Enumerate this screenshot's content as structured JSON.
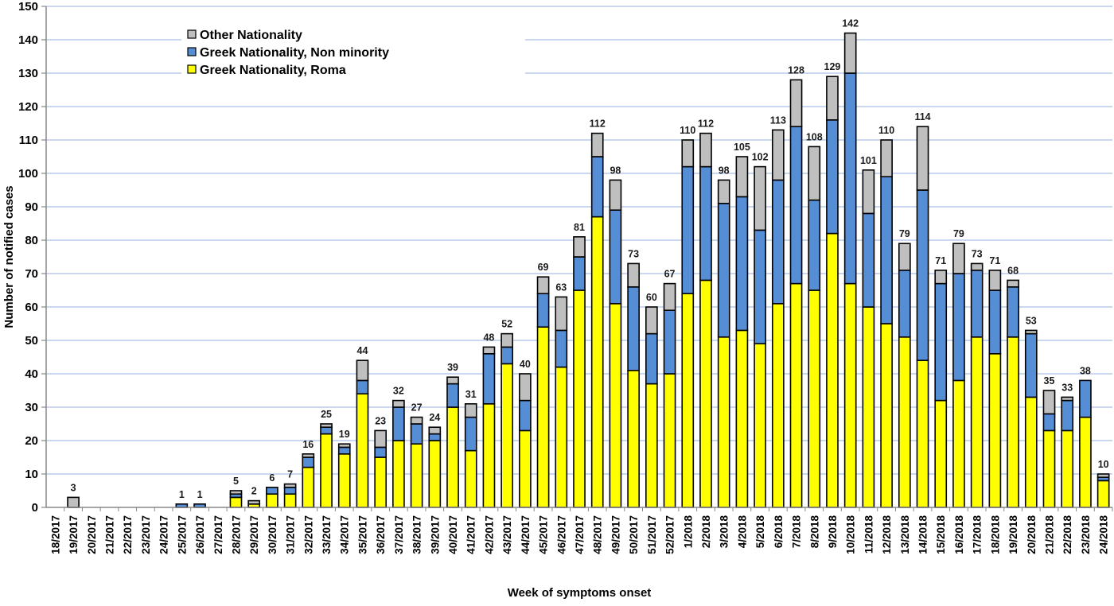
{
  "chart_data": {
    "type": "bar",
    "stacked": true,
    "title": "",
    "xlabel": "Week of symptoms onset",
    "ylabel": "Number of notified cases",
    "ylim": [
      0,
      150
    ],
    "yticks": [
      0,
      10,
      20,
      30,
      40,
      50,
      60,
      70,
      80,
      90,
      100,
      110,
      120,
      130,
      140,
      150
    ],
    "grid": true,
    "legend_position": "top-left",
    "categories": [
      "18/2017",
      "19/2017",
      "20/2017",
      "21/2017",
      "22/2017",
      "23/2017",
      "24/2017",
      "25/2017",
      "26/2017",
      "27/2017",
      "28/2017",
      "29/2017",
      "30/2017",
      "31/2017",
      "32/2017",
      "33/2017",
      "34/2017",
      "35/2017",
      "36/2017",
      "37/2017",
      "38/2017",
      "39/2017",
      "40/2017",
      "41/2017",
      "42/2017",
      "43/2017",
      "44/2017",
      "45/2017",
      "46/2017",
      "47/2017",
      "48/2017",
      "49/2017",
      "50/2017",
      "51/2017",
      "52/2017",
      "1/2018",
      "2/2018",
      "3/2018",
      "4/2018",
      "5/2018",
      "6/2018",
      "7/2018",
      "8/2018",
      "9/2018",
      "10/2018",
      "11/2018",
      "12/2018",
      "13/2018",
      "14/2018",
      "15/2018",
      "16/2018",
      "17/2018",
      "18/2018",
      "19/2018",
      "20/2018",
      "21/2018",
      "22/2018",
      "23/2018",
      "24/2018"
    ],
    "series": [
      {
        "name": "Greek Nationality, Roma",
        "color": "#FFFF00",
        "values": [
          0,
          0,
          0,
          0,
          0,
          0,
          0,
          0,
          0,
          0,
          3,
          1,
          4,
          4,
          12,
          22,
          16,
          34,
          15,
          20,
          19,
          20,
          30,
          17,
          31,
          43,
          23,
          54,
          42,
          65,
          87,
          61,
          41,
          37,
          40,
          64,
          68,
          51,
          53,
          49,
          61,
          67,
          65,
          82,
          67,
          60,
          55,
          51,
          44,
          32,
          38,
          51,
          46,
          51,
          33,
          23,
          23,
          27,
          8
        ]
      },
      {
        "name": "Greek Nationality, Non minority",
        "color": "#558ED5",
        "values": [
          0,
          0,
          0,
          0,
          0,
          0,
          0,
          1,
          1,
          0,
          1,
          0,
          2,
          2,
          3,
          2,
          2,
          4,
          3,
          10,
          6,
          2,
          7,
          10,
          15,
          5,
          9,
          10,
          11,
          10,
          18,
          28,
          25,
          15,
          19,
          38,
          34,
          40,
          40,
          34,
          37,
          47,
          27,
          34,
          63,
          28,
          44,
          20,
          51,
          35,
          32,
          20,
          19,
          15,
          19,
          5,
          9,
          11,
          1
        ]
      },
      {
        "name": "Other Nationality",
        "color": "#BFBFBF",
        "values": [
          0,
          3,
          0,
          0,
          0,
          0,
          0,
          0,
          0,
          0,
          1,
          1,
          0,
          1,
          1,
          1,
          1,
          6,
          5,
          2,
          2,
          2,
          2,
          4,
          2,
          4,
          8,
          5,
          10,
          6,
          7,
          9,
          7,
          8,
          8,
          8,
          10,
          7,
          12,
          19,
          15,
          14,
          16,
          13,
          12,
          13,
          11,
          8,
          19,
          4,
          9,
          2,
          6,
          2,
          1,
          7,
          1,
          0,
          1
        ]
      }
    ],
    "totals": [
      null,
      3,
      null,
      null,
      null,
      null,
      null,
      1,
      1,
      null,
      5,
      2,
      6,
      7,
      16,
      25,
      19,
      44,
      23,
      32,
      27,
      24,
      39,
      31,
      48,
      52,
      40,
      69,
      63,
      81,
      112,
      98,
      73,
      60,
      67,
      110,
      112,
      98,
      105,
      102,
      113,
      128,
      108,
      129,
      142,
      101,
      110,
      79,
      114,
      71,
      79,
      73,
      71,
      68,
      53,
      35,
      33,
      38,
      10
    ],
    "legend": [
      "Other Nationality",
      "Greek Nationality, Non minority",
      "Greek Nationality, Roma"
    ]
  }
}
